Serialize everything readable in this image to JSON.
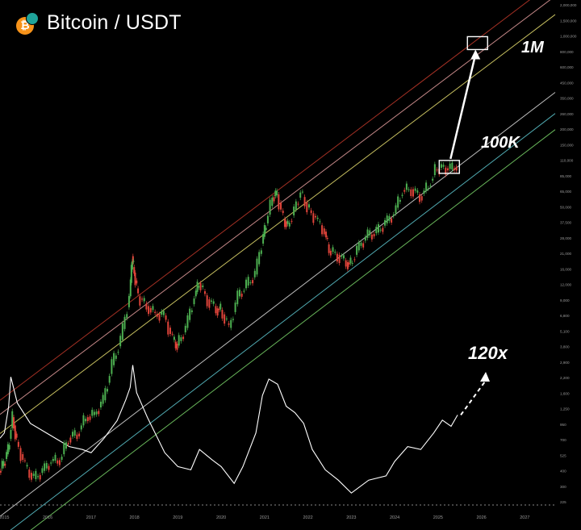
{
  "header": {
    "title": "Bitcoin / USDT",
    "coin_icon": "bitcoin-icon",
    "exchange_icon": "gem-icon",
    "brand_color": "#f7931a",
    "exchange_color": "#1fa39a"
  },
  "annotations": {
    "target_1m": "1M",
    "target_100k": "100K",
    "multiplier": "120x"
  },
  "chart_data": {
    "type": "line",
    "title": "Bitcoin / USDT",
    "y_scale": "log",
    "ylim": [
      180,
      2100000
    ],
    "xlim": [
      2014.9,
      2027.7
    ],
    "x_tick_labels": [
      "2015",
      "2016",
      "2017",
      "2018",
      "2019",
      "2020",
      "2021",
      "2022",
      "2023",
      "2024",
      "2025",
      "2026",
      "2027"
    ],
    "y_tick_labels": [
      "2,000,000",
      "1,500,000",
      "1,000,000",
      "800,000",
      "600,000",
      "450,000",
      "350,000",
      "260,000",
      "200,000",
      "150,000",
      "110,000",
      "85,000",
      "65,000",
      "50,000",
      "37,500",
      "28,000",
      "21,000",
      "16,000",
      "12,000",
      "9,000",
      "6,800",
      "5,100",
      "3,800",
      "2,900",
      "2,200",
      "1,600",
      "1,250",
      "950",
      "700",
      "525",
      "400",
      "300",
      "225"
    ],
    "channel_lines": [
      {
        "name": "band-red",
        "color": "#c0392b",
        "start": [
          2014.9,
          1300
        ],
        "end": [
          2027.7,
          3200000
        ]
      },
      {
        "name": "band-pink",
        "color": "#e8a0a0",
        "start": [
          2014.9,
          1000
        ],
        "end": [
          2027.7,
          2400000
        ]
      },
      {
        "name": "band-yellow",
        "color": "#e8e070",
        "start": [
          2014.9,
          700
        ],
        "end": [
          2027.7,
          1700000
        ]
      },
      {
        "name": "band-white",
        "color": "#e0e0e0",
        "start": [
          2014.9,
          150
        ],
        "end": [
          2027.7,
          400000
        ]
      },
      {
        "name": "band-cyan",
        "color": "#5ec8d0",
        "start": [
          2014.9,
          100
        ],
        "end": [
          2027.7,
          270000
        ]
      },
      {
        "name": "band-green",
        "color": "#7bd66a",
        "start": [
          2014.9,
          75
        ],
        "end": [
          2027.7,
          200000
        ]
      }
    ],
    "series": [
      {
        "name": "price",
        "color": "#4caf50",
        "x": [
          2014.9,
          2015.0,
          2015.1,
          2015.2,
          2015.3,
          2015.5,
          2015.7,
          2015.9,
          2016.1,
          2016.3,
          2016.5,
          2016.7,
          2016.9,
          2017.1,
          2017.3,
          2017.5,
          2017.7,
          2017.9,
          2017.96,
          2018.0,
          2018.1,
          2018.3,
          2018.5,
          2018.7,
          2018.9,
          2019.0,
          2019.2,
          2019.4,
          2019.5,
          2019.7,
          2019.9,
          2020.0,
          2020.2,
          2020.4,
          2020.6,
          2020.8,
          2020.95,
          2021.05,
          2021.2,
          2021.3,
          2021.45,
          2021.55,
          2021.7,
          2021.85,
          2022.0,
          2022.2,
          2022.4,
          2022.5,
          2022.7,
          2022.9,
          2023.0,
          2023.2,
          2023.4,
          2023.6,
          2023.8,
          2024.0,
          2024.2,
          2024.4,
          2024.6,
          2024.8,
          2024.95,
          2025.1,
          2025.3,
          2025.45
        ],
        "values": [
          350,
          400,
          520,
          950,
          600,
          380,
          300,
          350,
          420,
          430,
          650,
          700,
          950,
          1000,
          1300,
          2500,
          4000,
          9000,
          19000,
          14000,
          9000,
          7500,
          6500,
          6300,
          4000,
          3600,
          5000,
          9000,
          11500,
          8500,
          7200,
          7000,
          5000,
          9000,
          11000,
          13500,
          24000,
          35000,
          57000,
          60000,
          38000,
          33000,
          45000,
          63000,
          47000,
          38000,
          30000,
          21000,
          19500,
          17000,
          16500,
          23000,
          28000,
          29500,
          35000,
          42000,
          65000,
          66000,
          58000,
          70000,
          95000,
          100000,
          95000,
          103000
        ]
      },
      {
        "name": "multiplier",
        "color": "#ffffff",
        "x": [
          2014.9,
          2015.0,
          2015.1,
          2015.15,
          2015.3,
          2015.6,
          2016.0,
          2016.5,
          2016.8,
          2017.0,
          2017.3,
          2017.6,
          2017.8,
          2017.9,
          2017.96,
          2018.05,
          2018.3,
          2018.7,
          2019.0,
          2019.3,
          2019.5,
          2019.8,
          2020.0,
          2020.3,
          2020.5,
          2020.8,
          2020.95,
          2021.1,
          2021.3,
          2021.5,
          2021.7,
          2021.9,
          2022.1,
          2022.4,
          2022.7,
          2023.0,
          2023.4,
          2023.8,
          2024.0,
          2024.3,
          2024.6,
          2024.9,
          2025.1,
          2025.3,
          2025.45
        ],
        "values": [
          7,
          9,
          18,
          48,
          20,
          12,
          8,
          6,
          5,
          5,
          7,
          13,
          22,
          35,
          62,
          30,
          13,
          5,
          3,
          3,
          5,
          4,
          3,
          2,
          3,
          9,
          25,
          45,
          35,
          20,
          15,
          12,
          5,
          3,
          2,
          1.5,
          2,
          2.5,
          3.5,
          6,
          5,
          9,
          12,
          11,
          14
        ]
      }
    ],
    "multiplier_axis": {
      "min": 1,
      "max": 66
    },
    "targets": [
      {
        "label": "1M",
        "x": 2025.9,
        "y": 1000000
      },
      {
        "label": "100K",
        "x": 2025.25,
        "y": 100000
      }
    ]
  }
}
